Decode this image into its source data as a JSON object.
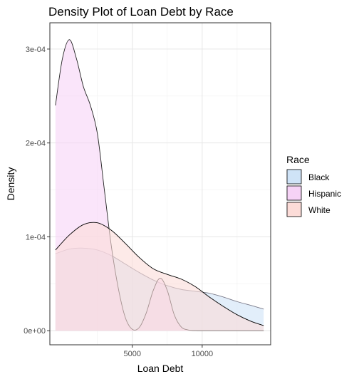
{
  "chart_data": {
    "type": "area",
    "title": "Density Plot of Loan Debt by Race",
    "xlabel": "Loan Debt",
    "ylabel": "Density",
    "xlim": [
      -900,
      14900
    ],
    "ylim": [
      -1.5e-05,
      0.000328
    ],
    "x_ticks": [
      {
        "value": 5000,
        "label": "5000"
      },
      {
        "value": 10000,
        "label": "10000"
      }
    ],
    "y_ticks": [
      {
        "value": 0,
        "label": "0e+00"
      },
      {
        "value": 0.0001,
        "label": "1e-04"
      },
      {
        "value": 0.0002,
        "label": "2e-04"
      },
      {
        "value": 0.0003,
        "label": "3e-04"
      }
    ],
    "x_minor_ticks": [
      2500,
      7500,
      12500
    ],
    "y_minor_ticks": [
      5e-05,
      0.00015,
      0.00025
    ],
    "grid": true,
    "legend": {
      "title": "Race",
      "position": "right"
    },
    "series": [
      {
        "name": "Black",
        "fill": "#cfe3f7",
        "stroke": "#7a7a8a",
        "x": [
          -500,
          500,
          1500,
          2500,
          3500,
          4500,
          5500,
          6500,
          7500,
          8500,
          9500,
          10500,
          11500,
          12500,
          13500,
          14400
        ],
        "y": [
          8.2e-05,
          8.7e-05,
          8.8e-05,
          8.6e-05,
          8e-05,
          7.1e-05,
          6.2e-05,
          5.4e-05,
          4.8e-05,
          4.4e-05,
          4.2e-05,
          4e-05,
          3.6e-05,
          3.1e-05,
          2.7e-05,
          2.3e-05
        ]
      },
      {
        "name": "Hispanic",
        "fill": "#f6d3f6",
        "stroke": "#222222",
        "x": [
          -500,
          0,
          500,
          1000,
          1500,
          2000,
          2500,
          3000,
          3500,
          4000,
          4500,
          5000,
          5500,
          6000,
          6500,
          7000,
          7500,
          8000,
          8500,
          9000,
          9500,
          10000,
          11000,
          12000,
          13000,
          14400
        ],
        "y": [
          0.00024,
          0.00029,
          0.00031,
          0.00029,
          0.00026,
          0.00024,
          0.00021,
          0.00015,
          9e-05,
          4.5e-05,
          1.4e-05,
          1.5e-06,
          3.5e-06,
          1.9e-05,
          4.3e-05,
          5.6e-05,
          4.3e-05,
          1.7e-05,
          4e-06,
          8e-07,
          2e-07,
          1e-07,
          1e-07,
          1e-07,
          1e-07,
          1e-07
        ]
      },
      {
        "name": "White",
        "fill": "#fcdcd8",
        "stroke": "#000000",
        "x": [
          -500,
          500,
          1500,
          2500,
          3500,
          4500,
          5500,
          6500,
          7500,
          8500,
          9500,
          10500,
          11500,
          12500,
          13500,
          14400
        ],
        "y": [
          8.6e-05,
          0.000102,
          0.000113,
          0.000115,
          0.000107,
          9.3e-05,
          7.8e-05,
          6.6e-05,
          6e-05,
          5.5e-05,
          4.7e-05,
          3.6e-05,
          2.6e-05,
          1.7e-05,
          1e-05,
          5.5e-06
        ]
      }
    ]
  }
}
